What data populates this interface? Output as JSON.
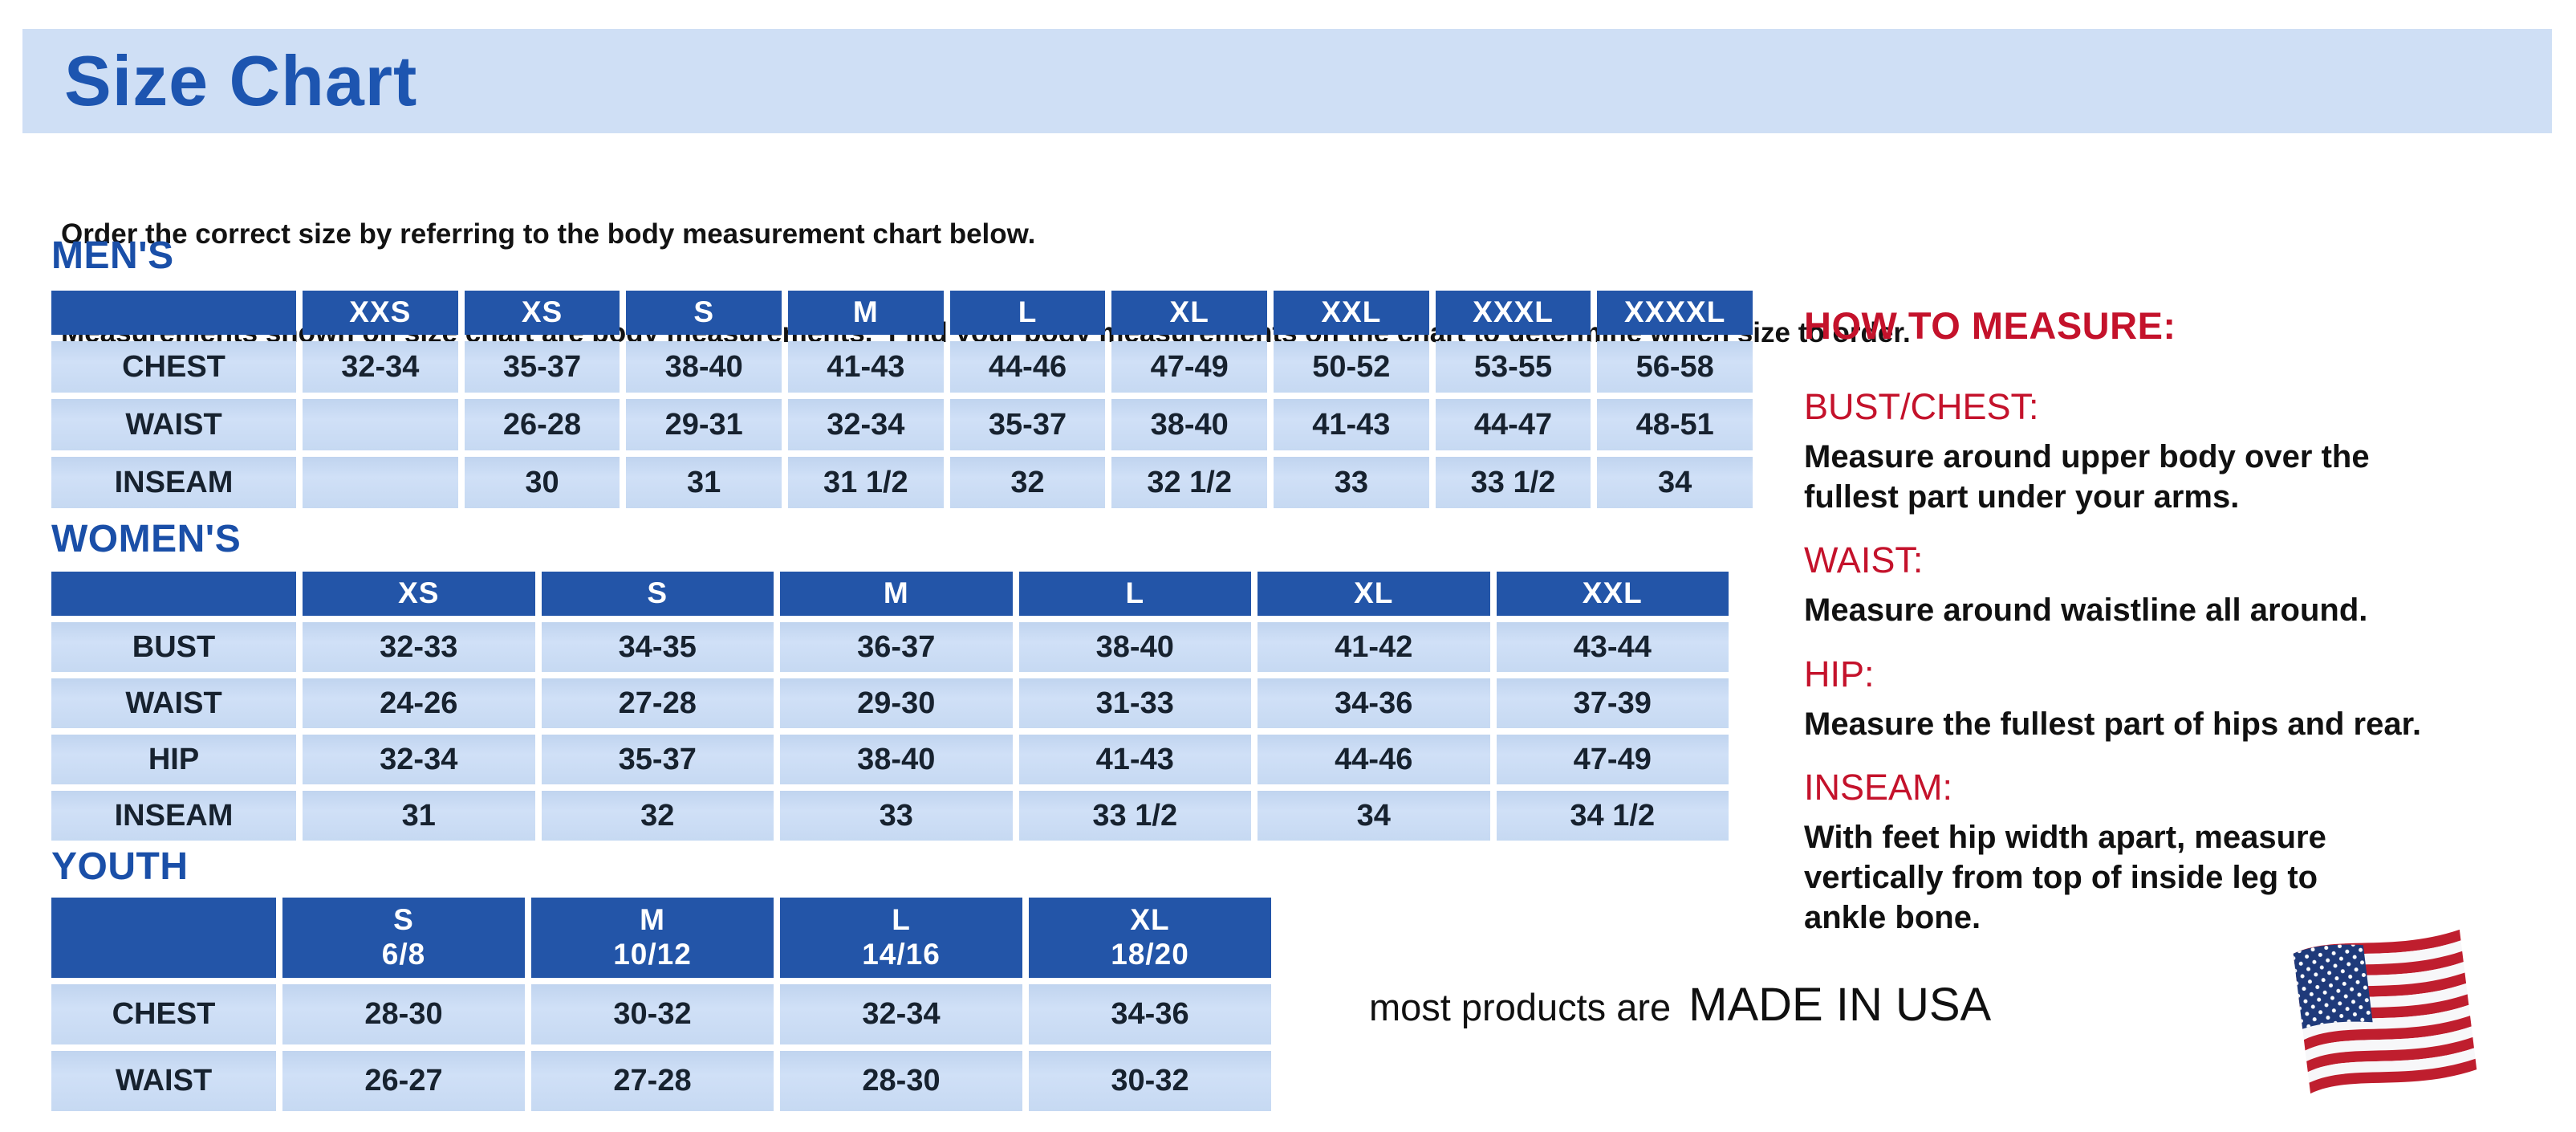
{
  "page": {
    "title": "Size Chart",
    "intro": [
      "Order the correct size by referring to the body measurement chart below.",
      "Measurements shown on size chart are body measurements.  Find your body measurements on the chart to determine which size to order."
    ]
  },
  "colors": {
    "banner_blue": "#cfdff5",
    "heading_blue": "#1a4fa8",
    "table_header_blue": "#2355a8",
    "cell_blue": "#c6d9f2",
    "red": "#c4122b"
  },
  "tables": {
    "mens": {
      "section_title": "MEN'S",
      "headers": [
        "",
        "XXS",
        "XS",
        "S",
        "M",
        "L",
        "XL",
        "XXL",
        "XXXL",
        "XXXXL"
      ],
      "rows": [
        {
          "label": "CHEST",
          "cells": [
            "32-34",
            "35-37",
            "38-40",
            "41-43",
            "44-46",
            "47-49",
            "50-52",
            "53-55",
            "56-58"
          ]
        },
        {
          "label": "WAIST",
          "cells": [
            "",
            "26-28",
            "29-31",
            "32-34",
            "35-37",
            "38-40",
            "41-43",
            "44-47",
            "48-51"
          ]
        },
        {
          "label": "INSEAM",
          "cells": [
            "",
            "30",
            "31",
            "31 1/2",
            "32",
            "32 1/2",
            "33",
            "33 1/2",
            "34"
          ]
        }
      ]
    },
    "womens": {
      "section_title": "WOMEN'S",
      "headers": [
        "",
        "XS",
        "S",
        "M",
        "L",
        "XL",
        "XXL"
      ],
      "rows": [
        {
          "label": "BUST",
          "cells": [
            "32-33",
            "34-35",
            "36-37",
            "38-40",
            "41-42",
            "43-44"
          ]
        },
        {
          "label": "WAIST",
          "cells": [
            "24-26",
            "27-28",
            "29-30",
            "31-33",
            "34-36",
            "37-39"
          ]
        },
        {
          "label": "HIP",
          "cells": [
            "32-34",
            "35-37",
            "38-40",
            "41-43",
            "44-46",
            "47-49"
          ]
        },
        {
          "label": "INSEAM",
          "cells": [
            "31",
            "32",
            "33",
            "33 1/2",
            "34",
            "34 1/2"
          ]
        }
      ]
    },
    "youth": {
      "section_title": "YOUTH",
      "headers": [
        "",
        "S\n6/8",
        "M\n10/12",
        "L\n14/16",
        "XL\n18/20"
      ],
      "rows": [
        {
          "label": "CHEST",
          "cells": [
            "28-30",
            "30-32",
            "32-34",
            "34-36"
          ]
        },
        {
          "label": "WAIST",
          "cells": [
            "26-27",
            "27-28",
            "28-30",
            "30-32"
          ]
        }
      ]
    }
  },
  "how_to_measure": {
    "title": "HOW TO MEASURE:",
    "items": [
      {
        "label": "BUST/CHEST:",
        "text": "Measure around upper body over the\nfullest part under your arms."
      },
      {
        "label": "WAIST:",
        "text": "Measure around waistline all around."
      },
      {
        "label": "HIP:",
        "text": "Measure the fullest part of hips and rear."
      },
      {
        "label": "INSEAM:",
        "text": "With feet hip width apart, measure\nvertically from top of inside leg to\nankle bone."
      }
    ]
  },
  "footer": {
    "prefix": "most products are",
    "made_in": "MADE IN USA",
    "flag_icon": "us-flag-icon"
  }
}
